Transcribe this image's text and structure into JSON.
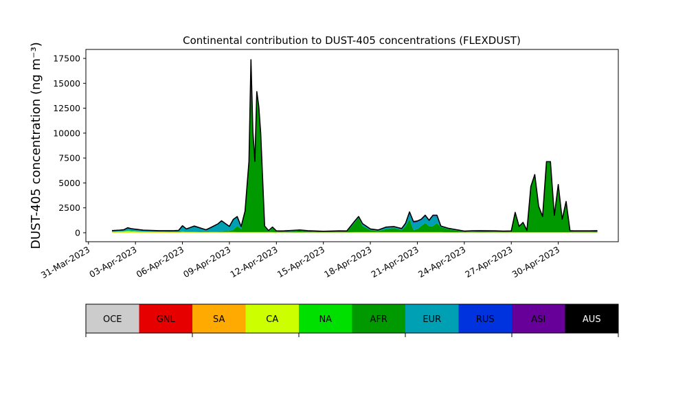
{
  "chart_data": {
    "type": "area",
    "title": "Continental contribution to DUST-405 concentrations (FLEXDUST)",
    "ylabel": "DUST-405 concentration (ng m⁻³)",
    "xlabel": "",
    "ylim": [
      -900,
      18400
    ],
    "xlim": [
      "2023-03-30T20:00",
      "2023-05-03T20:00"
    ],
    "x_ticks": [
      "31-Mar-2023",
      "03-Apr-2023",
      "06-Apr-2023",
      "09-Apr-2023",
      "12-Apr-2023",
      "15-Apr-2023",
      "18-Apr-2023",
      "21-Apr-2023",
      "24-Apr-2023",
      "27-Apr-2023",
      "30-Apr-2023"
    ],
    "x_tick_dates": [
      "2023-03-31",
      "2023-04-03",
      "2023-04-06",
      "2023-04-09",
      "2023-04-12",
      "2023-04-15",
      "2023-04-18",
      "2023-04-21",
      "2023-04-24",
      "2023-04-27",
      "2023-04-30"
    ],
    "y_ticks": [
      0,
      2500,
      5000,
      7500,
      10000,
      12500,
      15000,
      17500
    ],
    "y_tick_labels": [
      "0",
      "2500",
      "5000",
      "7500",
      "10000",
      "12500",
      "15000",
      "17500"
    ],
    "grid": false,
    "legend_position": "bottom",
    "x": [
      "2023-04-01T12:00",
      "2023-04-02T00:00",
      "2023-04-02T06:00",
      "2023-04-02T12:00",
      "2023-04-02T18:00",
      "2023-04-03T12:00",
      "2023-04-04T12:00",
      "2023-04-05T12:00",
      "2023-04-05T18:00",
      "2023-04-06T00:00",
      "2023-04-06T06:00",
      "2023-04-06T18:00",
      "2023-04-07T12:00",
      "2023-04-07T18:00",
      "2023-04-08T06:00",
      "2023-04-08T12:00",
      "2023-04-08T18:00",
      "2023-04-09T00:00",
      "2023-04-09T06:00",
      "2023-04-09T12:00",
      "2023-04-09T18:00",
      "2023-04-10T00:00",
      "2023-04-10T06:00",
      "2023-04-10T09:00",
      "2023-04-10T12:00",
      "2023-04-10T15:00",
      "2023-04-10T18:00",
      "2023-04-10T21:00",
      "2023-04-11T00:00",
      "2023-04-11T06:00",
      "2023-04-11T12:00",
      "2023-04-11T18:00",
      "2023-04-12T00:00",
      "2023-04-12T06:00",
      "2023-04-12T12:00",
      "2023-04-13T00:00",
      "2023-04-13T12:00",
      "2023-04-14T00:00",
      "2023-04-15T00:00",
      "2023-04-16T00:00",
      "2023-04-16T12:00",
      "2023-04-17T00:00",
      "2023-04-17T06:00",
      "2023-04-17T12:00",
      "2023-04-18T00:00",
      "2023-04-18T12:00",
      "2023-04-19T00:00",
      "2023-04-19T12:00",
      "2023-04-19T18:00",
      "2023-04-20T00:00",
      "2023-04-20T06:00",
      "2023-04-20T12:00",
      "2023-04-20T18:00",
      "2023-04-21T00:00",
      "2023-04-21T06:00",
      "2023-04-21T12:00",
      "2023-04-21T18:00",
      "2023-04-22T00:00",
      "2023-04-22T06:00",
      "2023-04-22T12:00",
      "2023-04-23T00:00",
      "2023-04-24T00:00",
      "2023-04-24T12:00",
      "2023-04-25T00:00",
      "2023-04-26T00:00",
      "2023-04-26T12:00",
      "2023-04-27T00:00",
      "2023-04-27T06:00",
      "2023-04-27T12:00",
      "2023-04-27T18:00",
      "2023-04-28T00:00",
      "2023-04-28T06:00",
      "2023-04-28T12:00",
      "2023-04-28T18:00",
      "2023-04-29T00:00",
      "2023-04-29T06:00",
      "2023-04-29T12:00",
      "2023-04-29T18:00",
      "2023-04-30T00:00",
      "2023-04-30T06:00",
      "2023-04-30T12:00",
      "2023-04-30T18:00",
      "2023-05-01T00:00",
      "2023-05-01T12:00",
      "2023-05-02T00:00",
      "2023-05-02T12:00"
    ],
    "series": [
      {
        "name": "OCE",
        "color": "#cccccc",
        "values": [
          5,
          5,
          5,
          5,
          5,
          5,
          5,
          5,
          5,
          5,
          5,
          5,
          5,
          5,
          5,
          5,
          5,
          5,
          5,
          5,
          5,
          5,
          5,
          5,
          5,
          5,
          5,
          5,
          5,
          5,
          5,
          5,
          5,
          5,
          5,
          5,
          5,
          5,
          5,
          5,
          5,
          5,
          5,
          5,
          5,
          5,
          5,
          5,
          5,
          5,
          5,
          5,
          5,
          5,
          5,
          5,
          5,
          5,
          5,
          5,
          5,
          5,
          5,
          5,
          5,
          5,
          5,
          5,
          5,
          5,
          5,
          5,
          5,
          5,
          5,
          5,
          5,
          5,
          5,
          5,
          5,
          5,
          5,
          5,
          5,
          5
        ]
      },
      {
        "name": "GNL",
        "color": "#e60000",
        "values": [
          5,
          5,
          5,
          5,
          5,
          5,
          5,
          5,
          5,
          5,
          5,
          5,
          5,
          5,
          5,
          5,
          5,
          5,
          5,
          5,
          5,
          5,
          5,
          5,
          5,
          5,
          5,
          5,
          5,
          5,
          5,
          5,
          5,
          5,
          5,
          5,
          5,
          5,
          5,
          5,
          5,
          5,
          5,
          5,
          5,
          5,
          5,
          5,
          5,
          5,
          5,
          5,
          5,
          5,
          5,
          5,
          5,
          5,
          5,
          5,
          5,
          5,
          5,
          5,
          5,
          5,
          5,
          5,
          5,
          5,
          5,
          5,
          5,
          5,
          5,
          5,
          5,
          5,
          5,
          5,
          5,
          5,
          5,
          5,
          5,
          5
        ]
      },
      {
        "name": "SA",
        "color": "#ffaa00",
        "values": [
          10,
          10,
          10,
          10,
          10,
          10,
          10,
          10,
          10,
          10,
          10,
          10,
          10,
          10,
          10,
          10,
          10,
          10,
          10,
          10,
          10,
          10,
          10,
          10,
          10,
          10,
          10,
          10,
          10,
          10,
          10,
          10,
          10,
          10,
          10,
          10,
          10,
          10,
          10,
          10,
          10,
          10,
          10,
          10,
          10,
          10,
          10,
          10,
          10,
          10,
          10,
          10,
          10,
          10,
          10,
          10,
          10,
          10,
          10,
          10,
          10,
          10,
          10,
          10,
          10,
          10,
          10,
          10,
          10,
          10,
          10,
          10,
          10,
          10,
          10,
          10,
          10,
          10,
          10,
          10,
          10,
          10,
          10,
          10,
          10,
          10
        ]
      },
      {
        "name": "CA",
        "color": "#ccff00",
        "values": [
          60,
          80,
          100,
          150,
          120,
          60,
          50,
          50,
          40,
          60,
          50,
          40,
          40,
          40,
          40,
          40,
          40,
          40,
          40,
          30,
          30,
          30,
          30,
          30,
          30,
          30,
          30,
          30,
          30,
          30,
          30,
          30,
          20,
          20,
          20,
          20,
          20,
          20,
          20,
          20,
          20,
          30,
          30,
          30,
          30,
          30,
          30,
          30,
          30,
          30,
          30,
          30,
          30,
          30,
          30,
          30,
          30,
          30,
          30,
          30,
          20,
          20,
          20,
          20,
          20,
          20,
          20,
          20,
          20,
          20,
          20,
          20,
          20,
          20,
          20,
          20,
          20,
          20,
          20,
          20,
          20,
          20,
          20,
          20,
          20,
          20
        ]
      },
      {
        "name": "NA",
        "color": "#00e000",
        "values": [
          30,
          30,
          30,
          30,
          30,
          30,
          30,
          30,
          30,
          30,
          30,
          30,
          30,
          30,
          30,
          30,
          30,
          30,
          30,
          20,
          20,
          20,
          20,
          20,
          20,
          20,
          20,
          20,
          20,
          20,
          20,
          20,
          20,
          20,
          20,
          20,
          20,
          20,
          20,
          20,
          20,
          20,
          20,
          20,
          20,
          20,
          20,
          20,
          20,
          20,
          20,
          20,
          20,
          20,
          20,
          20,
          20,
          20,
          20,
          20,
          20,
          20,
          20,
          20,
          20,
          20,
          20,
          20,
          20,
          20,
          20,
          20,
          20,
          20,
          20,
          20,
          20,
          20,
          20,
          20,
          20,
          20,
          20,
          20,
          20,
          20
        ]
      },
      {
        "name": "AFR",
        "color": "#009900",
        "values": [
          20,
          20,
          20,
          30,
          30,
          20,
          20,
          40,
          50,
          40,
          30,
          30,
          60,
          40,
          40,
          60,
          80,
          100,
          200,
          600,
          300,
          2000,
          7000,
          17200,
          10000,
          7000,
          14000,
          12500,
          9800,
          500,
          50,
          400,
          50,
          40,
          50,
          100,
          150,
          80,
          20,
          50,
          40,
          950,
          1450,
          600,
          200,
          100,
          300,
          400,
          300,
          200,
          600,
          1300,
          200,
          300,
          600,
          900,
          600,
          600,
          900,
          500,
          300,
          40,
          60,
          80,
          60,
          40,
          50,
          1900,
          500,
          900,
          100,
          4500,
          5700,
          2500,
          1500,
          7000,
          7000,
          1600,
          4700,
          1200,
          3000,
          80,
          60,
          60,
          60,
          80
        ]
      },
      {
        "name": "EUR",
        "color": "#00a0b4",
        "values": [
          40,
          60,
          80,
          200,
          150,
          80,
          40,
          30,
          40,
          500,
          200,
          500,
          100,
          300,
          700,
          1000,
          700,
          400,
          1000,
          900,
          200,
          50,
          50,
          50,
          50,
          50,
          50,
          50,
          50,
          50,
          50,
          50,
          30,
          30,
          30,
          30,
          20,
          20,
          20,
          30,
          30,
          100,
          60,
          200,
          60,
          60,
          150,
          100,
          100,
          100,
          200,
          600,
          700,
          700,
          600,
          700,
          500,
          1000,
          700,
          50,
          30,
          20,
          30,
          20,
          20,
          20,
          20,
          30,
          30,
          30,
          30,
          30,
          30,
          30,
          30,
          30,
          30,
          30,
          30,
          30,
          30,
          20,
          20,
          20,
          20,
          20
        ]
      },
      {
        "name": "RUS",
        "color": "#0033dd",
        "values": [
          20,
          20,
          20,
          30,
          20,
          20,
          20,
          20,
          20,
          20,
          20,
          20,
          20,
          20,
          20,
          20,
          20,
          20,
          20,
          20,
          20,
          20,
          20,
          20,
          20,
          20,
          20,
          20,
          20,
          20,
          20,
          20,
          20,
          20,
          20,
          20,
          20,
          20,
          20,
          20,
          20,
          20,
          20,
          20,
          20,
          20,
          20,
          20,
          20,
          20,
          40,
          50,
          60,
          40,
          40,
          40,
          40,
          40,
          40,
          20,
          20,
          20,
          20,
          20,
          20,
          20,
          20,
          20,
          20,
          20,
          20,
          20,
          20,
          20,
          20,
          20,
          20,
          20,
          20,
          20,
          20,
          20,
          20,
          20,
          20,
          20
        ]
      },
      {
        "name": "ASI",
        "color": "#660099",
        "values": [
          20,
          20,
          20,
          30,
          20,
          20,
          20,
          20,
          20,
          20,
          20,
          20,
          20,
          20,
          20,
          20,
          20,
          20,
          20,
          20,
          20,
          20,
          20,
          20,
          20,
          20,
          20,
          20,
          20,
          20,
          20,
          20,
          20,
          20,
          20,
          20,
          20,
          20,
          20,
          20,
          20,
          20,
          20,
          20,
          20,
          20,
          20,
          20,
          20,
          20,
          40,
          60,
          80,
          60,
          40,
          40,
          40,
          40,
          40,
          20,
          20,
          20,
          20,
          20,
          20,
          20,
          20,
          20,
          20,
          20,
          20,
          20,
          20,
          20,
          20,
          20,
          20,
          20,
          20,
          20,
          20,
          20,
          20,
          20,
          20,
          20
        ]
      },
      {
        "name": "AUS",
        "color": "#000000",
        "values": [
          10,
          10,
          10,
          10,
          10,
          10,
          10,
          10,
          10,
          10,
          10,
          10,
          10,
          10,
          10,
          10,
          10,
          10,
          10,
          10,
          10,
          10,
          10,
          10,
          10,
          10,
          10,
          10,
          10,
          10,
          10,
          10,
          10,
          10,
          10,
          10,
          10,
          10,
          10,
          10,
          10,
          10,
          10,
          10,
          10,
          10,
          10,
          10,
          10,
          10,
          10,
          10,
          10,
          10,
          10,
          10,
          10,
          10,
          10,
          10,
          10,
          10,
          10,
          10,
          10,
          10,
          10,
          10,
          10,
          10,
          10,
          10,
          10,
          10,
          10,
          10,
          10,
          10,
          10,
          10,
          10,
          10,
          10,
          10,
          10,
          10
        ]
      }
    ],
    "legend": [
      {
        "label": "OCE",
        "color": "#cccccc",
        "text_color": "#000000"
      },
      {
        "label": "GNL",
        "color": "#e60000",
        "text_color": "#000000"
      },
      {
        "label": "SA",
        "color": "#ffaa00",
        "text_color": "#000000"
      },
      {
        "label": "CA",
        "color": "#ccff00",
        "text_color": "#000000"
      },
      {
        "label": "NA",
        "color": "#00e000",
        "text_color": "#000000"
      },
      {
        "label": "AFR",
        "color": "#009900",
        "text_color": "#000000"
      },
      {
        "label": "EUR",
        "color": "#00a0b4",
        "text_color": "#000000"
      },
      {
        "label": "RUS",
        "color": "#0033dd",
        "text_color": "#000000"
      },
      {
        "label": "ASI",
        "color": "#660099",
        "text_color": "#000000"
      },
      {
        "label": "AUS",
        "color": "#000000",
        "text_color": "#ffffff"
      }
    ]
  }
}
